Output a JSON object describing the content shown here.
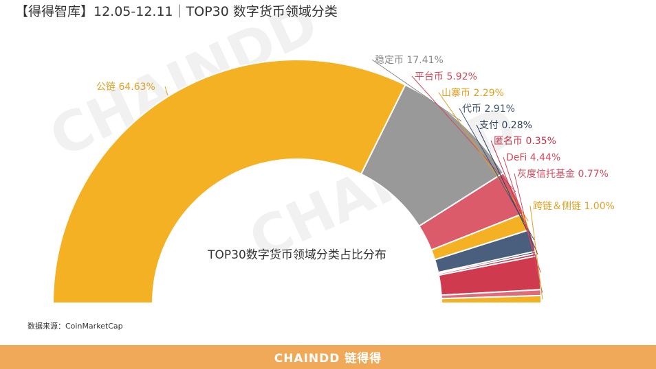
{
  "title": "【得得智库】12.05-12.11｜TOP30 数字货币领域分类",
  "source": "数据来源：CoinMarketCap",
  "footer": {
    "brand": "CHAINDD 链得得"
  },
  "watermark": "CHAINDD",
  "chart_data": {
    "type": "pie",
    "subtype": "half-donut",
    "title": "TOP30数字货币领域分类占比分布",
    "unit": "%",
    "slices": [
      {
        "name": "公链",
        "value": 64.63,
        "label": "公链 64.63%",
        "color": "#f5b124",
        "label_color": "#e0a020"
      },
      {
        "name": "稳定币",
        "value": 17.41,
        "label": "稳定币 17.41%",
        "color": "#999999",
        "label_color": "#8a8a8a"
      },
      {
        "name": "平台币",
        "value": 5.92,
        "label": "平台币 5.92%",
        "color": "#dc5b6b",
        "label_color": "#d24a5c"
      },
      {
        "name": "山寨币",
        "value": 2.29,
        "label": "山寨币 2.29%",
        "color": "#f5b124",
        "label_color": "#e0a020"
      },
      {
        "name": "代币",
        "value": 2.91,
        "label": "代币 2.91%",
        "color": "#4a5f7e",
        "label_color": "#3f5573"
      },
      {
        "name": "支付",
        "value": 0.28,
        "label": "支付 0.28%",
        "color": "#2c3e5a",
        "label_color": "#2c3e5a"
      },
      {
        "name": "匿名币",
        "value": 0.35,
        "label": "匿名币 0.35%",
        "color": "#c9334a",
        "label_color": "#c9334a"
      },
      {
        "name": "DeFi",
        "value": 4.44,
        "label": "DeFi 4.44%",
        "color": "#cf3a4f",
        "label_color": "#d24a5c"
      },
      {
        "name": "灰度信托基金",
        "value": 0.77,
        "label": "灰度信托基金 0.77%",
        "color": "#e06b78",
        "label_color": "#d24a5c"
      },
      {
        "name": "跨链&侧链",
        "value": 1.0,
        "label": "跨链＆侧链 1.00%",
        "color": "#f5b124",
        "label_color": "#e0a020"
      }
    ]
  }
}
